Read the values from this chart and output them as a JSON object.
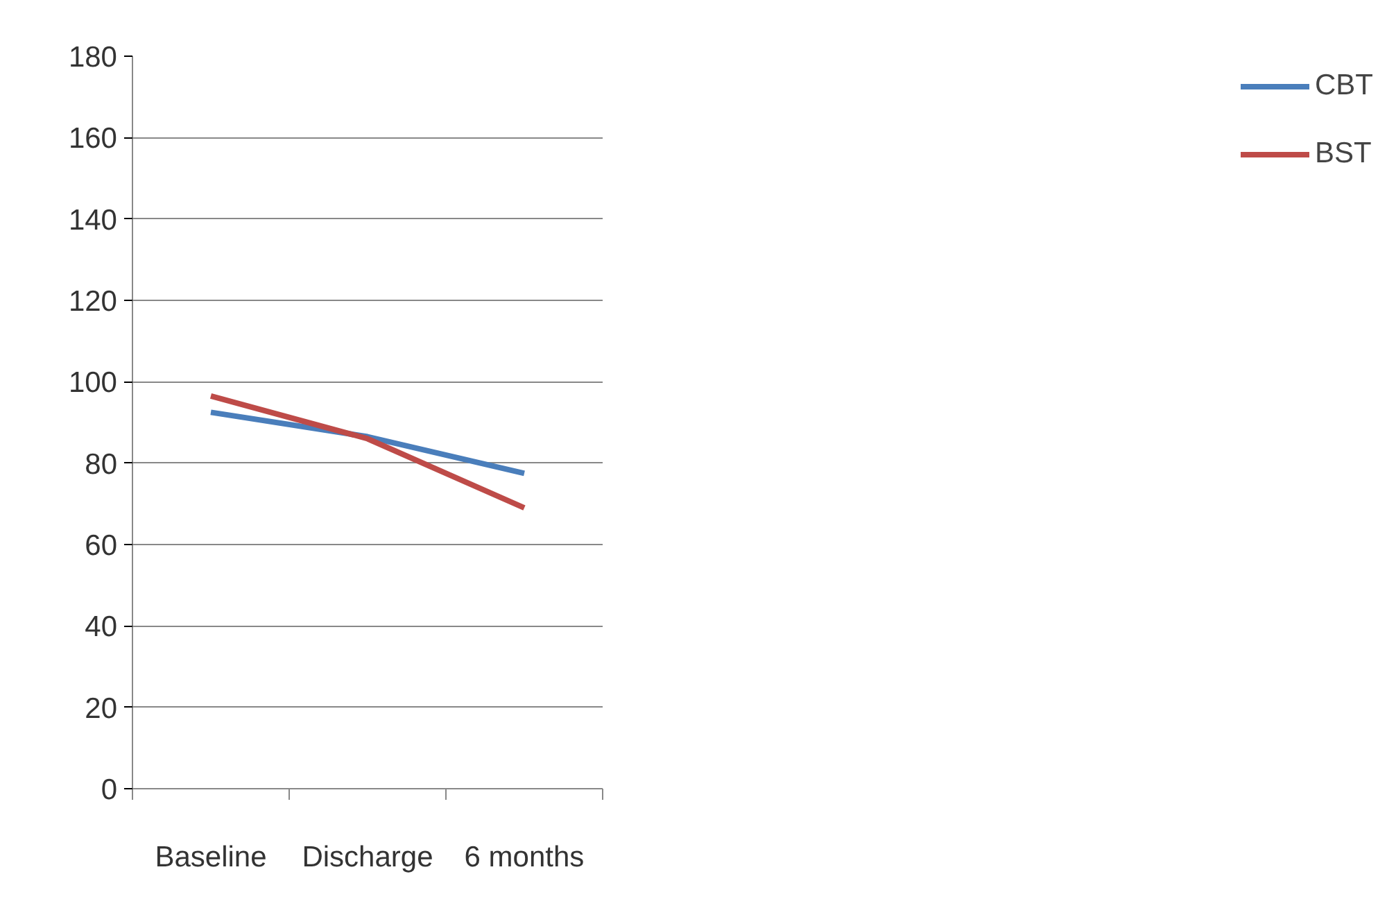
{
  "chart_data": {
    "type": "line",
    "categories": [
      "Baseline",
      "Discharge",
      "6 months"
    ],
    "series": [
      {
        "name": "CBT",
        "color": "#4a7ebb",
        "values": [
          92.5,
          86.5,
          77.5
        ]
      },
      {
        "name": "BST",
        "color": "#be4b48",
        "values": [
          96.5,
          86,
          69
        ]
      }
    ],
    "ylim": [
      0,
      180
    ],
    "yticks": [
      0,
      20,
      40,
      60,
      80,
      100,
      120,
      140,
      160,
      180
    ],
    "grid": "y",
    "legend": "right",
    "marker": "none",
    "line_style": "solid"
  }
}
